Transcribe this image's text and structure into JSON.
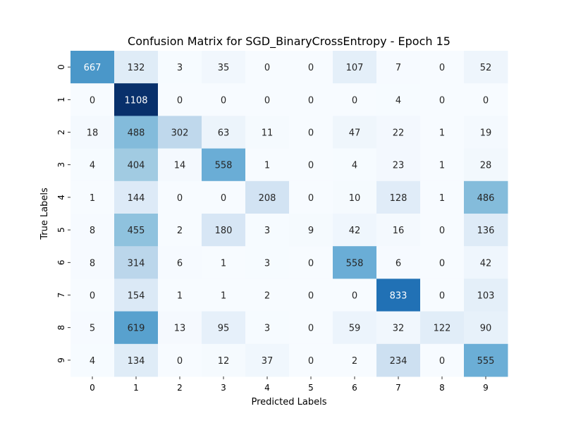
{
  "chart_data": {
    "type": "heatmap",
    "title": "Confusion Matrix for SGD_BinaryCrossEntropy - Epoch 15",
    "xlabel": "Predicted Labels",
    "ylabel": "True Labels",
    "x_ticks": [
      "0",
      "1",
      "2",
      "3",
      "4",
      "5",
      "6",
      "7",
      "8",
      "9"
    ],
    "y_ticks": [
      "0",
      "1",
      "2",
      "3",
      "4",
      "5",
      "6",
      "7",
      "8",
      "9"
    ],
    "colormap": "Blues",
    "color_range": [
      0,
      1108
    ],
    "matrix": [
      [
        667,
        132,
        3,
        35,
        0,
        0,
        107,
        7,
        0,
        52
      ],
      [
        0,
        1108,
        0,
        0,
        0,
        0,
        0,
        4,
        0,
        0
      ],
      [
        18,
        488,
        302,
        63,
        11,
        0,
        47,
        22,
        1,
        19
      ],
      [
        4,
        404,
        14,
        558,
        1,
        0,
        4,
        23,
        1,
        28
      ],
      [
        1,
        144,
        0,
        0,
        208,
        0,
        10,
        128,
        1,
        486
      ],
      [
        8,
        455,
        2,
        180,
        3,
        9,
        42,
        16,
        0,
        136
      ],
      [
        8,
        314,
        6,
        1,
        3,
        0,
        558,
        6,
        0,
        42
      ],
      [
        0,
        154,
        1,
        1,
        2,
        0,
        0,
        833,
        0,
        103
      ],
      [
        5,
        619,
        13,
        95,
        3,
        0,
        59,
        32,
        122,
        90
      ],
      [
        4,
        134,
        0,
        12,
        37,
        0,
        2,
        234,
        0,
        555
      ]
    ]
  }
}
